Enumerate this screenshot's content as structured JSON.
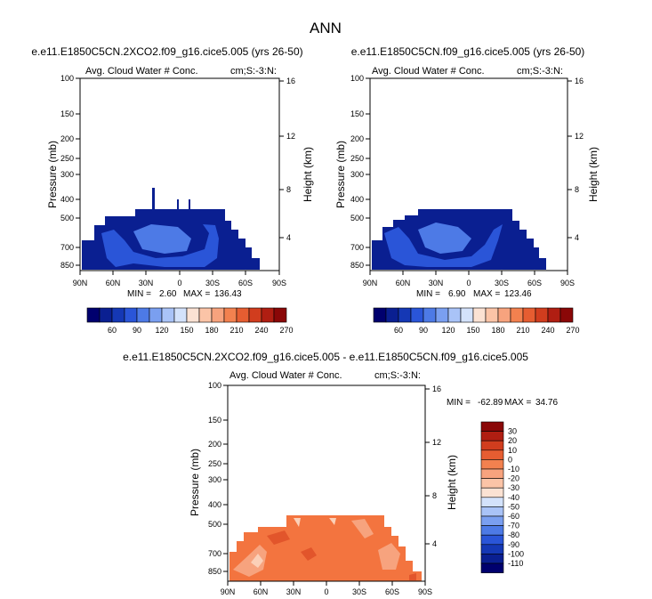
{
  "main_title": "ANN",
  "colors": {
    "cloud_land": "#0a1f91",
    "cloud_light": "#2a55d8",
    "cloud_lighter": "#4d7ae6",
    "diff_base": "#f3743f",
    "diff_dark": "#e2552b",
    "diff_light": "#f7a37e",
    "diff_pale": "#fbd0b8"
  },
  "chart_data": [
    {
      "type": "heatmap",
      "title": "e.e11.E1850C5CN.2XCO2.f09_g16.cice5.005 (yrs 26-50)",
      "left_label": "Avg. Cloud Water # Conc.",
      "right_label": "cm;S:-3:N:",
      "ylabel": "Pressure (mb)",
      "y2label": "Height (km)",
      "x_ticks": [
        "90N",
        "60N",
        "30N",
        "0",
        "30S",
        "60S",
        "90S"
      ],
      "y_ticks": [
        "100",
        "150",
        "200",
        "250",
        "300",
        "400",
        "500",
        "700",
        "850"
      ],
      "y2_ticks": [
        "16",
        "12",
        "8",
        "4"
      ],
      "stats": {
        "min_label": "MIN =",
        "min": "2.60",
        "max_label": "MAX =",
        "max": "136.43"
      },
      "colorbar_labels": [
        "60",
        "90",
        "120",
        "150",
        "180",
        "210",
        "240",
        "270"
      ],
      "colorbar_colors": [
        "#00006e",
        "#0a1f91",
        "#1538b5",
        "#2a55d8",
        "#4d7ae6",
        "#7a9ff0",
        "#a9c3f7",
        "#d3e2fb",
        "#fbe2d3",
        "#fbc4a7",
        "#f7a37e",
        "#f2814f",
        "#e65d31",
        "#d13d1e",
        "#b01e12",
        "#8a0707"
      ]
    },
    {
      "type": "heatmap",
      "title": "e.e11.E1850C5CN.f09_g16.cice5.005 (yrs 26-50)",
      "left_label": "Avg. Cloud Water # Conc.",
      "right_label": "cm;S:-3:N:",
      "ylabel": "Pressure (mb)",
      "y2label": "Height (km)",
      "x_ticks": [
        "90N",
        "60N",
        "30N",
        "0",
        "30S",
        "60S",
        "90S"
      ],
      "y_ticks": [
        "100",
        "150",
        "200",
        "250",
        "300",
        "400",
        "500",
        "700",
        "850"
      ],
      "y2_ticks": [
        "16",
        "12",
        "8",
        "4"
      ],
      "stats": {
        "min_label": "MIN =",
        "min": "6.90",
        "max_label": "MAX =",
        "max": "123.46"
      },
      "colorbar_labels": [
        "60",
        "90",
        "120",
        "150",
        "180",
        "210",
        "240",
        "270"
      ],
      "colorbar_colors": [
        "#00006e",
        "#0a1f91",
        "#1538b5",
        "#2a55d8",
        "#4d7ae6",
        "#7a9ff0",
        "#a9c3f7",
        "#d3e2fb",
        "#fbe2d3",
        "#fbc4a7",
        "#f7a37e",
        "#f2814f",
        "#e65d31",
        "#d13d1e",
        "#b01e12",
        "#8a0707"
      ]
    },
    {
      "type": "heatmap",
      "title": "e.e11.E1850C5CN.2XCO2.f09_g16.cice5.005 - e.e11.E1850C5CN.f09_g16.cice5.005",
      "left_label": "Avg. Cloud Water # Conc.",
      "right_label": "cm;S:-3:N:",
      "ylabel": "Pressure (mb)",
      "y2label": "Height (km)",
      "x_ticks": [
        "90N",
        "60N",
        "30N",
        "0",
        "30S",
        "60S",
        "90S"
      ],
      "y_ticks": [
        "100",
        "150",
        "200",
        "250",
        "300",
        "400",
        "500",
        "700",
        "850"
      ],
      "y2_ticks": [
        "16",
        "12",
        "8",
        "4"
      ],
      "stats": {
        "min_label": "MIN =",
        "min": "-62.89",
        "max_label": "MAX =",
        "max": "34.76"
      },
      "colorbar_labels": [
        "30",
        "20",
        "10",
        "0",
        "-10",
        "-20",
        "-30",
        "-40",
        "-50",
        "-60",
        "-70",
        "-80",
        "-90",
        "-100",
        "-110"
      ],
      "colorbar_colors": [
        "#8a0707",
        "#b01e12",
        "#d13d1e",
        "#e65d31",
        "#f2814f",
        "#f7a37e",
        "#fbc4a7",
        "#fbe2d3",
        "#d3e2fb",
        "#a9c3f7",
        "#7a9ff0",
        "#4d7ae6",
        "#2a55d8",
        "#1538b5",
        "#0a1f91",
        "#00006e"
      ]
    }
  ]
}
